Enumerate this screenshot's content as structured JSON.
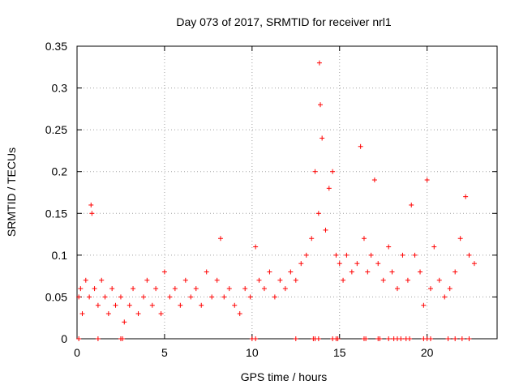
{
  "chart_data": {
    "type": "scatter",
    "title": "Day 073 of 2017, SRMTID for receiver nrl1",
    "xlabel": "GPS time / hours",
    "ylabel": "SRMTID / TECUs",
    "xlim": [
      0,
      24
    ],
    "ylim": [
      0,
      0.35
    ],
    "x_ticks": [
      0,
      5,
      10,
      15,
      20
    ],
    "x_tick_labels": [
      "0",
      "5",
      "10",
      "15",
      "20"
    ],
    "y_ticks": [
      0,
      0.05,
      0.1,
      0.15,
      0.2,
      0.25,
      0.3,
      0.35
    ],
    "y_tick_labels": [
      "0",
      "0.05",
      "0.1",
      "0.15",
      "0.2",
      "0.25",
      "0.3",
      "0.35"
    ],
    "grid": true,
    "marker": "+",
    "color": "#ff0000",
    "series": [
      {
        "name": "SRMTID",
        "points": [
          [
            0.1,
            0.05
          ],
          [
            0.2,
            0.06
          ],
          [
            0.3,
            0.03
          ],
          [
            0.5,
            0.07
          ],
          [
            0.7,
            0.05
          ],
          [
            0.8,
            0.16
          ],
          [
            0.85,
            0.15
          ],
          [
            1.0,
            0.06
          ],
          [
            1.2,
            0.04
          ],
          [
            1.4,
            0.07
          ],
          [
            1.6,
            0.05
          ],
          [
            1.8,
            0.03
          ],
          [
            2.0,
            0.06
          ],
          [
            2.2,
            0.04
          ],
          [
            2.5,
            0.05
          ],
          [
            2.7,
            0.02
          ],
          [
            3.0,
            0.04
          ],
          [
            3.2,
            0.06
          ],
          [
            3.5,
            0.03
          ],
          [
            3.8,
            0.05
          ],
          [
            4.0,
            0.07
          ],
          [
            4.3,
            0.04
          ],
          [
            4.5,
            0.06
          ],
          [
            4.8,
            0.03
          ],
          [
            5.0,
            0.08
          ],
          [
            5.3,
            0.05
          ],
          [
            5.6,
            0.06
          ],
          [
            5.9,
            0.04
          ],
          [
            6.2,
            0.07
          ],
          [
            6.5,
            0.05
          ],
          [
            6.8,
            0.06
          ],
          [
            7.1,
            0.04
          ],
          [
            7.4,
            0.08
          ],
          [
            7.7,
            0.05
          ],
          [
            8.0,
            0.07
          ],
          [
            8.2,
            0.12
          ],
          [
            8.4,
            0.05
          ],
          [
            8.7,
            0.06
          ],
          [
            9.0,
            0.04
          ],
          [
            9.3,
            0.03
          ],
          [
            9.6,
            0.06
          ],
          [
            9.9,
            0.05
          ],
          [
            10.2,
            0.11
          ],
          [
            10.4,
            0.07
          ],
          [
            10.7,
            0.06
          ],
          [
            11.0,
            0.08
          ],
          [
            11.3,
            0.05
          ],
          [
            11.6,
            0.07
          ],
          [
            11.9,
            0.06
          ],
          [
            12.2,
            0.08
          ],
          [
            12.5,
            0.07
          ],
          [
            12.8,
            0.09
          ],
          [
            13.1,
            0.1
          ],
          [
            13.4,
            0.12
          ],
          [
            13.6,
            0.2
          ],
          [
            13.8,
            0.15
          ],
          [
            13.85,
            0.33
          ],
          [
            13.9,
            0.28
          ],
          [
            14.0,
            0.24
          ],
          [
            14.2,
            0.13
          ],
          [
            14.4,
            0.18
          ],
          [
            14.6,
            0.2
          ],
          [
            14.8,
            0.1
          ],
          [
            15.0,
            0.09
          ],
          [
            15.2,
            0.07
          ],
          [
            15.4,
            0.1
          ],
          [
            15.7,
            0.08
          ],
          [
            16.0,
            0.09
          ],
          [
            16.2,
            0.23
          ],
          [
            16.4,
            0.12
          ],
          [
            16.6,
            0.08
          ],
          [
            16.8,
            0.1
          ],
          [
            17.0,
            0.19
          ],
          [
            17.2,
            0.09
          ],
          [
            17.5,
            0.07
          ],
          [
            17.8,
            0.11
          ],
          [
            18.0,
            0.08
          ],
          [
            18.3,
            0.06
          ],
          [
            18.6,
            0.1
          ],
          [
            18.9,
            0.07
          ],
          [
            19.1,
            0.16
          ],
          [
            19.3,
            0.1
          ],
          [
            19.6,
            0.08
          ],
          [
            19.8,
            0.04
          ],
          [
            20.0,
            0.19
          ],
          [
            20.2,
            0.06
          ],
          [
            20.4,
            0.11
          ],
          [
            20.7,
            0.07
          ],
          [
            21.0,
            0.05
          ],
          [
            21.3,
            0.06
          ],
          [
            21.6,
            0.08
          ],
          [
            21.9,
            0.12
          ],
          [
            22.2,
            0.17
          ],
          [
            22.4,
            0.1
          ],
          [
            22.7,
            0.09
          ]
        ]
      }
    ],
    "zero_points_x": [
      0.1,
      1.2,
      2.5,
      2.6,
      10.0,
      10.2,
      12.5,
      13.5,
      13.6,
      13.8,
      14.6,
      14.8,
      14.9,
      16.4,
      16.5,
      17.2,
      17.3,
      17.8,
      18.1,
      18.3,
      18.5,
      18.8,
      19.0,
      19.8,
      20.0,
      20.2,
      21.2,
      21.6,
      22.0,
      22.4
    ]
  }
}
